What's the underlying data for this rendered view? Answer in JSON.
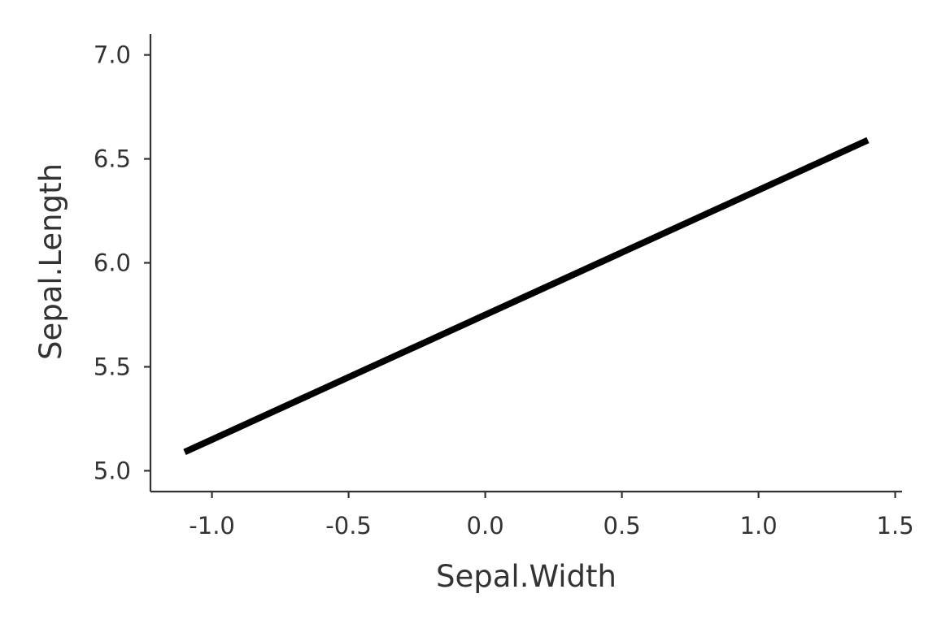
{
  "chart_data": {
    "type": "line",
    "title": "",
    "xlabel": "Sepal.Width",
    "ylabel": "Sepal.Length",
    "xlim": [
      -1.225,
      1.525
    ],
    "ylim": [
      4.9,
      7.1
    ],
    "x_ticks": [
      -1.0,
      -0.5,
      0.0,
      0.5,
      1.0,
      1.5
    ],
    "x_tick_labels": [
      "-1.0",
      "-0.5",
      "0.0",
      "0.5",
      "1.0",
      "1.5"
    ],
    "y_ticks": [
      5.0,
      5.5,
      6.0,
      6.5,
      7.0
    ],
    "y_tick_labels": [
      "5.0",
      "5.5",
      "6.0",
      "6.5",
      "7.0"
    ],
    "grid": false,
    "legend": "none",
    "series": [
      {
        "color": "#000000",
        "x": [
          -1.1,
          1.4
        ],
        "y": [
          5.09,
          6.59
        ]
      }
    ]
  }
}
